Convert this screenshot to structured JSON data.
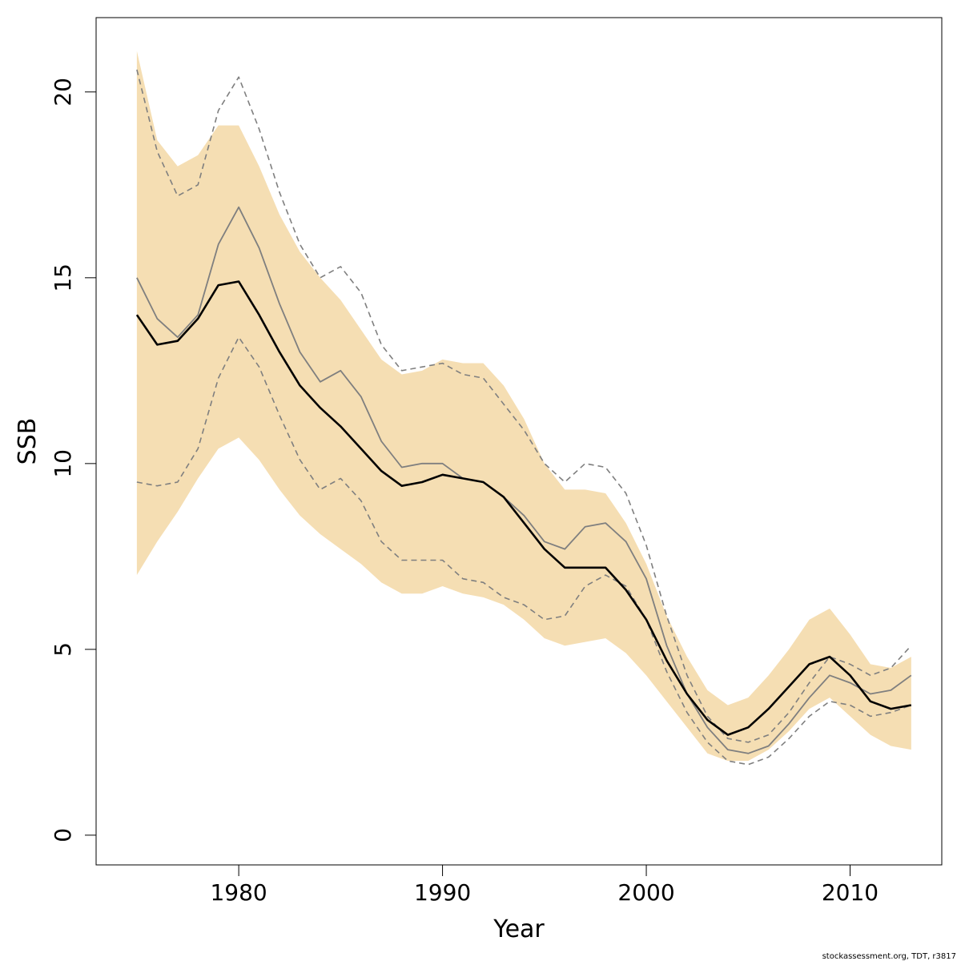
{
  "chart_data": {
    "type": "area",
    "xlabel": "Year",
    "ylabel": "SSB",
    "xlim": [
      1973.0,
      2014.5
    ],
    "ylim": [
      -0.8,
      22.0
    ],
    "x_ticks": [
      1980,
      1990,
      2000,
      2010
    ],
    "y_ticks": [
      0,
      5,
      10,
      15,
      20
    ],
    "credit": "stockassessment.org, TDT, r3817",
    "grid": false,
    "colors": {
      "band": "#f5deb3",
      "estimate": "#000000",
      "comparison": "#7f7f7f"
    },
    "x": [
      1975,
      1976,
      1977,
      1978,
      1979,
      1980,
      1981,
      1982,
      1983,
      1984,
      1985,
      1986,
      1987,
      1988,
      1989,
      1990,
      1991,
      1992,
      1993,
      1994,
      1995,
      1996,
      1997,
      1998,
      1999,
      2000,
      2001,
      2002,
      2003,
      2004,
      2005,
      2006,
      2007,
      2008,
      2009,
      2010,
      2011,
      2012,
      2013
    ],
    "series": [
      {
        "role": "band_upper",
        "style": "fill",
        "values": [
          21.1,
          18.7,
          18.0,
          18.3,
          19.1,
          19.1,
          18.0,
          16.7,
          15.7,
          15.0,
          14.4,
          13.6,
          12.8,
          12.4,
          12.5,
          12.8,
          12.7,
          12.7,
          12.1,
          11.2,
          10.0,
          9.3,
          9.3,
          9.2,
          8.4,
          7.3,
          5.9,
          4.8,
          3.9,
          3.5,
          3.7,
          4.3,
          5.0,
          5.8,
          6.1,
          5.4,
          4.6,
          4.5,
          4.8
        ]
      },
      {
        "role": "band_lower",
        "style": "fill",
        "values": [
          7.0,
          7.9,
          8.7,
          9.6,
          10.4,
          10.7,
          10.1,
          9.3,
          8.6,
          8.1,
          7.7,
          7.3,
          6.8,
          6.5,
          6.5,
          6.7,
          6.5,
          6.4,
          6.2,
          5.8,
          5.3,
          5.1,
          5.2,
          5.3,
          4.9,
          4.3,
          3.6,
          2.9,
          2.2,
          2.0,
          2.0,
          2.3,
          2.8,
          3.4,
          3.7,
          3.2,
          2.7,
          2.4,
          2.3
        ]
      },
      {
        "role": "estimate",
        "style": "solid-black",
        "values": [
          14.0,
          13.2,
          13.3,
          13.9,
          14.8,
          14.9,
          14.0,
          13.0,
          12.1,
          11.5,
          11.0,
          10.4,
          9.8,
          9.4,
          9.5,
          9.7,
          9.6,
          9.5,
          9.1,
          8.4,
          7.7,
          7.2,
          7.2,
          7.2,
          6.6,
          5.8,
          4.7,
          3.8,
          3.1,
          2.7,
          2.9,
          3.4,
          4.0,
          4.6,
          4.8,
          4.3,
          3.6,
          3.4,
          3.5
        ]
      },
      {
        "role": "comparison_estimate",
        "style": "solid-gray",
        "values": [
          15.0,
          13.9,
          13.4,
          14.0,
          15.9,
          16.9,
          15.8,
          14.3,
          13.0,
          12.2,
          12.5,
          11.8,
          10.6,
          9.9,
          10.0,
          10.0,
          9.6,
          9.5,
          9.1,
          8.6,
          7.9,
          7.7,
          8.3,
          8.4,
          7.9,
          6.9,
          5.1,
          3.8,
          2.9,
          2.3,
          2.2,
          2.4,
          3.0,
          3.7,
          4.3,
          4.1,
          3.8,
          3.9,
          4.3
        ]
      },
      {
        "role": "comparison_upper",
        "style": "dashed-gray",
        "values": [
          20.6,
          18.4,
          17.2,
          17.5,
          19.5,
          20.4,
          19.0,
          17.3,
          15.9,
          15.0,
          15.3,
          14.6,
          13.2,
          12.5,
          12.6,
          12.7,
          12.4,
          12.3,
          11.6,
          10.9,
          10.0,
          9.5,
          10.0,
          9.9,
          9.2,
          7.8,
          5.9,
          4.3,
          3.2,
          2.6,
          2.5,
          2.7,
          3.3,
          4.1,
          4.8,
          4.6,
          4.3,
          4.5,
          5.1
        ]
      },
      {
        "role": "comparison_lower",
        "style": "dashed-gray",
        "values": [
          9.5,
          9.4,
          9.5,
          10.4,
          12.3,
          13.4,
          12.6,
          11.3,
          10.1,
          9.3,
          9.6,
          9.0,
          7.9,
          7.4,
          7.4,
          7.4,
          6.9,
          6.8,
          6.4,
          6.2,
          5.8,
          5.9,
          6.7,
          7.0,
          6.7,
          5.8,
          4.4,
          3.3,
          2.5,
          2.0,
          1.9,
          2.1,
          2.6,
          3.2,
          3.6,
          3.5,
          3.2,
          3.3,
          3.5
        ]
      }
    ]
  }
}
